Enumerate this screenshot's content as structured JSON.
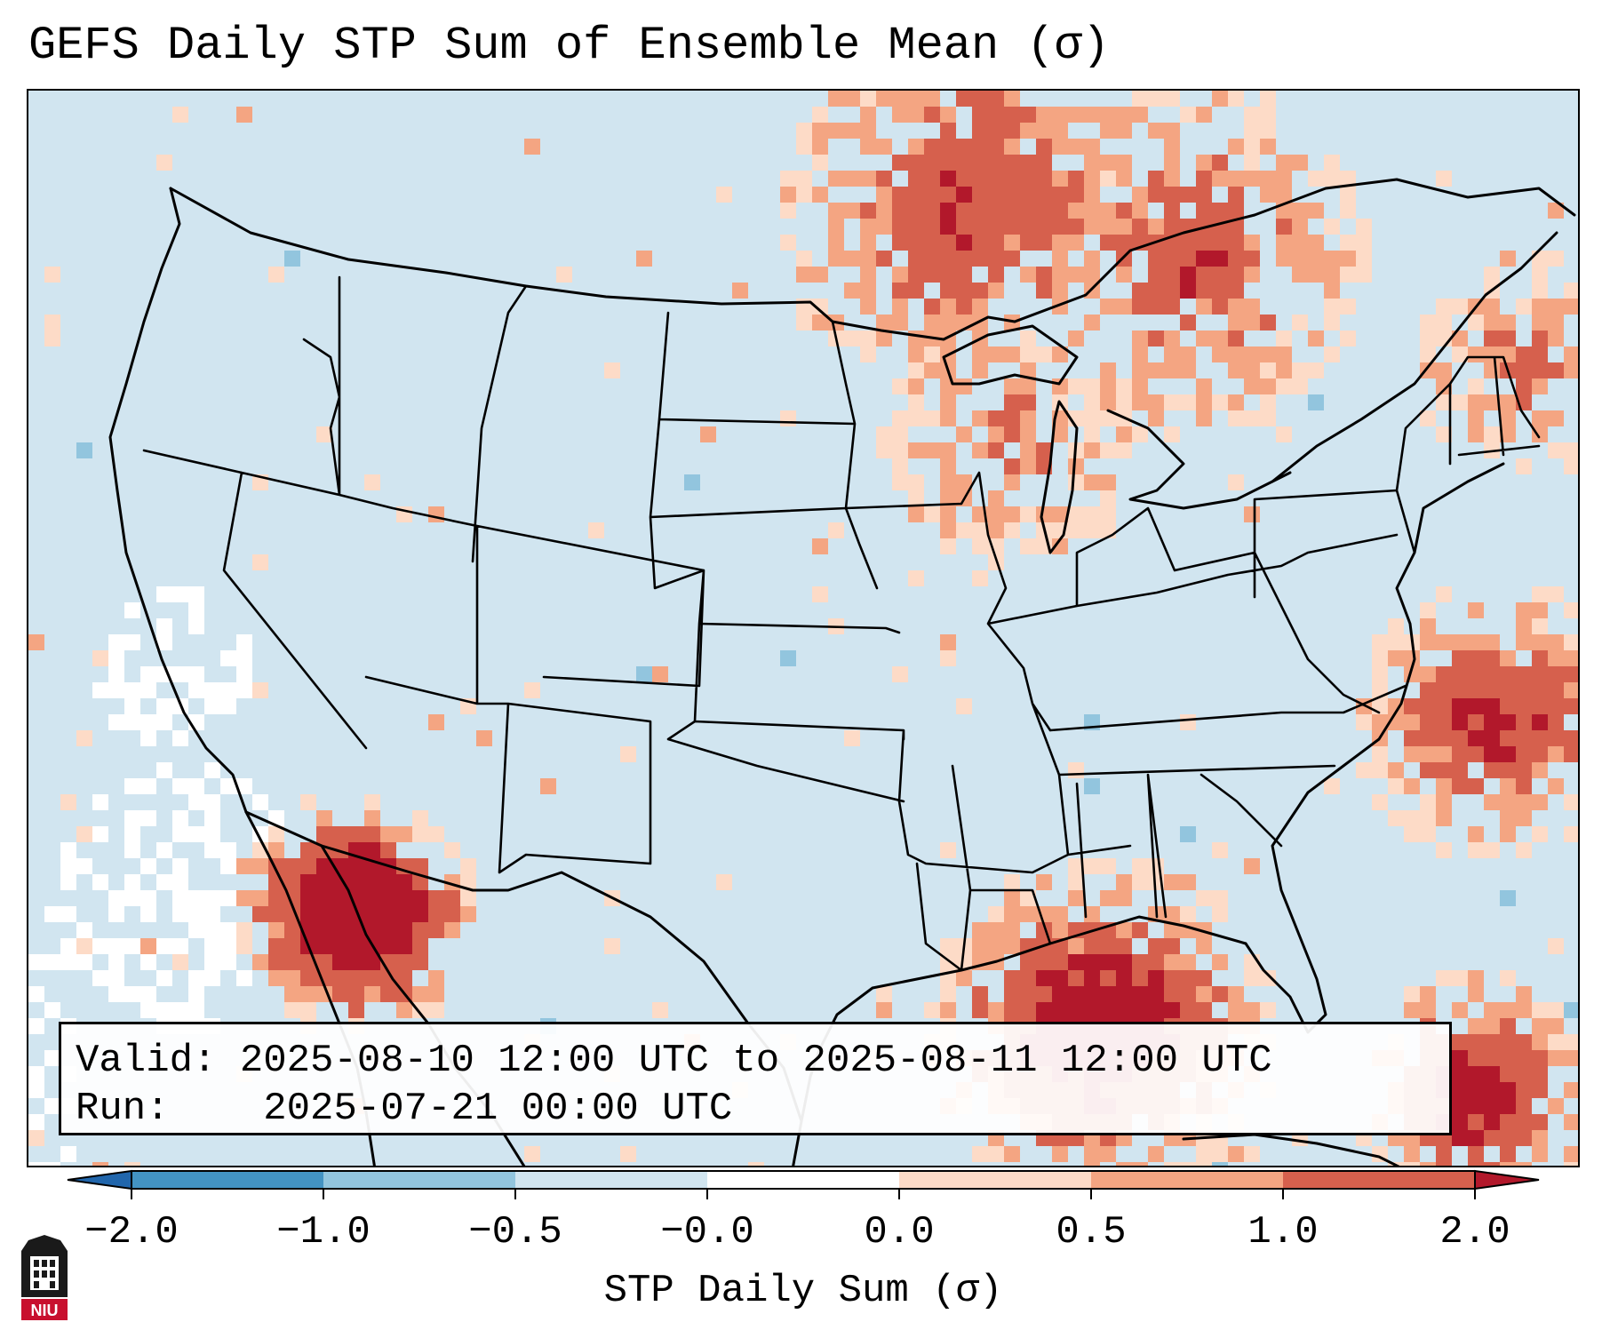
{
  "title": "GEFS Daily STP Sum of Ensemble Mean (σ)",
  "info": {
    "valid_label": "Valid:",
    "valid_value": "2025-08-10 12:00 UTC to 2025-08-11 12:00 UTC",
    "run_label": "Run:",
    "run_value": "2025-07-21 00:00 UTC"
  },
  "colorbar": {
    "label": "STP Daily Sum (σ)",
    "ticks": [
      "−2.0",
      "−1.0",
      "−0.5",
      "−0.0",
      "0.0",
      "0.5",
      "1.0",
      "2.0"
    ],
    "bins": [
      {
        "name": "-2.0 to -1.0",
        "color": "#4393c3"
      },
      {
        "name": "-1.0 to -0.5",
        "color": "#92c5de"
      },
      {
        "name": "-0.5 to -0.0",
        "color": "#d1e5f0"
      },
      {
        "name": "-0.0 to 0.0",
        "color": "#ffffff"
      },
      {
        "name": "0.0 to 0.5",
        "color": "#fddbc7"
      },
      {
        "name": "0.5 to 1.0",
        "color": "#f4a582"
      },
      {
        "name": "1.0 to 2.0",
        "color": "#d6604d"
      }
    ],
    "under_color": "#2166ac",
    "over_color": "#b2182b"
  },
  "logo": {
    "text": "NIU",
    "color": "#c8102e"
  },
  "map": {
    "projection": "Lambert Conformal (CONUS)",
    "background_color": "#d1e5f0",
    "border_color": "#000000"
  }
}
